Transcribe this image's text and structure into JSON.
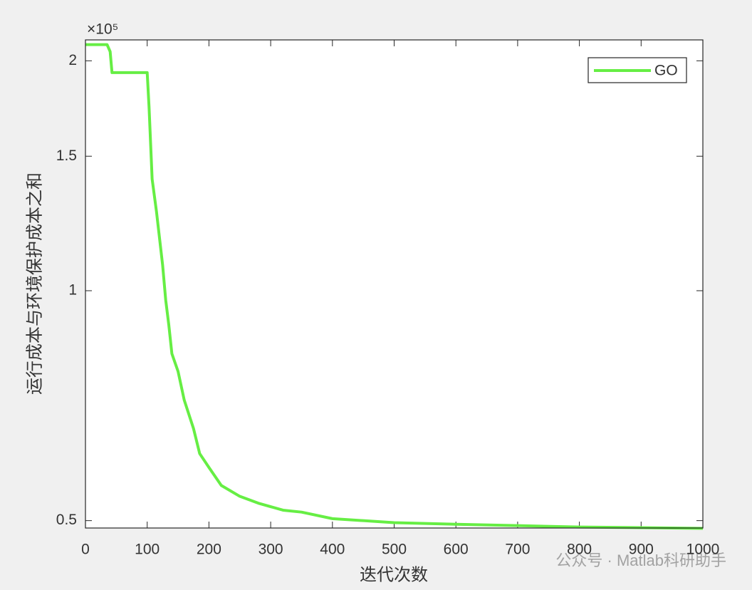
{
  "chart_data": {
    "type": "line",
    "x_label": "迭代次数",
    "y_label": "运行成本与环境保护成本之和",
    "y_scale_label": "×10⁵",
    "x": [
      0,
      35,
      40,
      43,
      100,
      103,
      108,
      115,
      125,
      130,
      135,
      140,
      150,
      160,
      175,
      185,
      200,
      220,
      250,
      280,
      320,
      350,
      400,
      500,
      600,
      700,
      800,
      1000
    ],
    "series": [
      {
        "name": "GO",
        "color": "#66ee44",
        "values": [
          210000,
          210000,
          205600,
          193000,
          193000,
          174000,
          140000,
          127000,
          108000,
          97200,
          90200,
          82700,
          78400,
          71900,
          66000,
          61200,
          58700,
          55600,
          53800,
          52700,
          51600,
          51300,
          50300,
          49700,
          49450,
          49250,
          49050,
          48850
        ]
      }
    ],
    "xlim": [
      0,
      1000
    ],
    "xticks": [
      0,
      100,
      200,
      300,
      400,
      500,
      600,
      700,
      800,
      900,
      1000
    ],
    "ylim": [
      48900,
      213000
    ],
    "log_y": true,
    "yticks": [
      {
        "value": 50000,
        "label": "0.5"
      },
      {
        "value": 100000,
        "label": "1"
      },
      {
        "value": 150000,
        "label": "1.5"
      },
      {
        "value": 200000,
        "label": "2"
      }
    ],
    "legend": "top-right",
    "watermark": "公众号 · Matlab科研助手"
  }
}
